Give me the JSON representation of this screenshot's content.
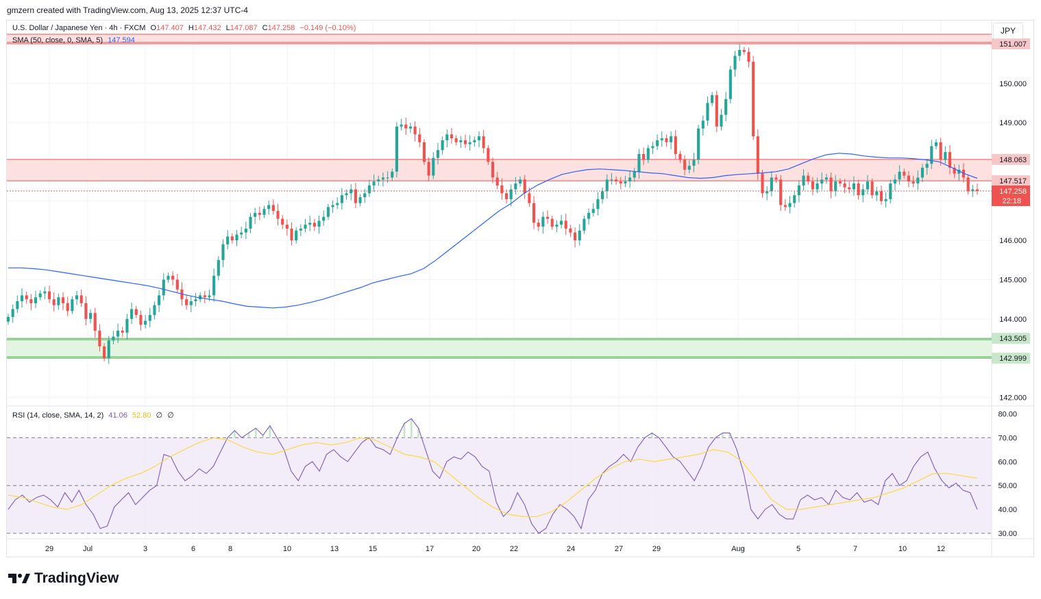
{
  "header": {
    "attribution": "gmzern created with TradingView.com, Aug 13, 2025 12:37 UTC-4"
  },
  "legend": {
    "symbol": "U.S. Dollar / Japanese Yen · 4h · FXCM",
    "open_label": "O",
    "open": "147.407",
    "high_label": "H",
    "high": "147.432",
    "low_label": "L",
    "low": "147.087",
    "close_label": "C",
    "close": "147.258",
    "change": "−0.149 (−0.10%)",
    "sma_label": "SMA (50, close, 0, SMA, 5)",
    "sma_value": "147.594",
    "rsi_label": "RSI (14, close, SMA, 14, 2)",
    "rsi_value": "41.06",
    "rsi_ma_value": "52.80",
    "rsi_extra1": "∅",
    "rsi_extra2": "∅"
  },
  "currency_button": "JPY",
  "colors": {
    "up": "#26a69a",
    "down": "#ef5350",
    "sma": "#2962ff",
    "rsi": "#7e57c2",
    "rsi_ma": "#fdd835",
    "resistance_fill": "#fde0e0",
    "resistance_line": "#ef5350",
    "support_fill": "#e3f5e1",
    "support_line": "#4caf50"
  },
  "branding": {
    "name": "TradingView"
  },
  "chart_data": {
    "type": "candlestick",
    "price_axis": {
      "ticks": [
        "150.000",
        "149.000",
        "146.000",
        "145.000",
        "144.000",
        "142.000"
      ],
      "range": [
        141.8,
        151.6
      ]
    },
    "rsi_axis": {
      "ticks": [
        "80.00",
        "70.00",
        "60.00",
        "50.00",
        "40.00",
        "30.00"
      ],
      "range": [
        28,
        83
      ]
    },
    "time_axis": [
      "29",
      "Jul",
      "3",
      "6",
      "8",
      "10",
      "13",
      "15",
      "17",
      "20",
      "22",
      "24",
      "27",
      "29",
      "Aug",
      "5",
      "7",
      "10",
      "12"
    ],
    "zones": [
      {
        "kind": "resistance",
        "top": 151.5,
        "bottom": 151.007,
        "label": "151.007"
      },
      {
        "kind": "resistance",
        "top": 148.063,
        "bottom": 147.517,
        "label_top": "148.063",
        "label_bottom": "147.517"
      },
      {
        "kind": "support",
        "top": 143.505,
        "bottom": 142.999,
        "label_top": "143.505",
        "label_bottom": "142.999"
      }
    ],
    "last_price": {
      "value": "147.258",
      "countdown": "22:18"
    },
    "rsi_bands": {
      "upper": 70,
      "middle": 50,
      "lower": 30
    },
    "close_series": [
      144.05,
      144.25,
      144.45,
      144.6,
      144.5,
      144.4,
      144.55,
      144.65,
      144.7,
      144.5,
      144.35,
      144.55,
      144.4,
      144.2,
      144.5,
      144.6,
      144.4,
      144.0,
      144.15,
      143.7,
      143.3,
      143.0,
      143.45,
      143.55,
      143.7,
      143.65,
      144.0,
      144.25,
      144.1,
      143.85,
      143.95,
      144.1,
      144.35,
      144.6,
      145.0,
      145.1,
      145.0,
      144.75,
      144.5,
      144.35,
      144.45,
      144.5,
      144.6,
      144.55,
      144.6,
      145.1,
      145.5,
      145.9,
      146.1,
      146.0,
      146.15,
      146.2,
      146.3,
      146.6,
      146.7,
      146.65,
      146.8,
      146.9,
      146.75,
      146.55,
      146.4,
      146.3,
      146.0,
      146.25,
      146.3,
      146.4,
      146.45,
      146.35,
      146.5,
      146.6,
      146.85,
      146.9,
      146.95,
      147.15,
      147.2,
      147.3,
      146.95,
      147.1,
      147.2,
      147.4,
      147.5,
      147.55,
      147.6,
      147.6,
      147.75,
      148.9,
      148.95,
      148.85,
      148.9,
      148.7,
      148.5,
      148.0,
      147.65,
      148.1,
      148.3,
      148.55,
      148.7,
      148.6,
      148.5,
      148.55,
      148.45,
      148.5,
      148.55,
      148.65,
      148.35,
      148.0,
      147.6,
      147.4,
      147.2,
      147.05,
      147.3,
      147.45,
      147.55,
      147.2,
      146.95,
      146.45,
      146.35,
      146.6,
      146.55,
      146.35,
      146.4,
      146.5,
      146.3,
      146.2,
      146.0,
      146.25,
      146.55,
      146.7,
      146.8,
      147.05,
      147.25,
      147.55,
      147.55,
      147.5,
      147.45,
      147.5,
      147.6,
      147.75,
      148.2,
      148.05,
      148.35,
      148.4,
      148.55,
      148.6,
      148.5,
      148.65,
      148.2,
      148.05,
      147.8,
      147.9,
      148.05,
      148.85,
      149.05,
      149.5,
      149.7,
      148.9,
      149.2,
      149.6,
      150.35,
      150.7,
      150.85,
      150.8,
      150.55,
      148.65,
      147.7,
      147.2,
      147.25,
      147.6,
      147.55,
      146.9,
      146.85,
      146.95,
      147.15,
      147.4,
      147.65,
      147.5,
      147.3,
      147.45,
      147.55,
      147.6,
      147.25,
      147.5,
      147.45,
      147.35,
      147.3,
      147.45,
      147.15,
      147.3,
      147.5,
      147.15,
      147.25,
      147.0,
      147.05,
      147.45,
      147.55,
      147.75,
      147.65,
      147.5,
      147.45,
      147.6,
      147.85,
      147.95,
      148.4,
      148.5,
      148.05,
      148.25,
      147.85,
      147.7,
      147.8,
      147.6,
      147.25,
      147.3,
      147.258
    ],
    "sma_series": [
      145.3,
      145.3,
      145.28,
      145.25,
      145.2,
      145.15,
      145.1,
      145.05,
      145.0,
      144.95,
      144.9,
      144.85,
      144.78,
      144.7,
      144.62,
      144.55,
      144.5,
      144.45,
      144.38,
      144.32,
      144.3,
      144.28,
      144.3,
      144.35,
      144.42,
      144.5,
      144.6,
      144.7,
      144.8,
      144.92,
      145.0,
      145.08,
      145.15,
      145.28,
      145.5,
      145.75,
      146.0,
      146.25,
      146.5,
      146.75,
      146.95,
      147.2,
      147.4,
      147.55,
      147.68,
      147.75,
      147.8,
      147.82,
      147.8,
      147.78,
      147.75,
      147.72,
      147.7,
      147.65,
      147.6,
      147.58,
      147.6,
      147.65,
      147.68,
      147.7,
      147.72,
      147.75,
      147.82,
      147.95,
      148.08,
      148.18,
      148.22,
      148.2,
      148.15,
      148.12,
      148.1,
      148.1,
      148.08,
      148.05,
      148.0,
      147.85,
      147.7,
      147.58
    ],
    "rsi_series": [
      40,
      44,
      46,
      43,
      45,
      46,
      44,
      41,
      47,
      43,
      48,
      42,
      38,
      32,
      33,
      41,
      44,
      47,
      42,
      45,
      48,
      50,
      63,
      62,
      56,
      52,
      54,
      57,
      55,
      58,
      64,
      70,
      73,
      70,
      72,
      74,
      71,
      75,
      70,
      65,
      56,
      52,
      58,
      60,
      56,
      63,
      65,
      62,
      60,
      64,
      68,
      70,
      66,
      65,
      63,
      70,
      76,
      78,
      74,
      65,
      56,
      53,
      60,
      62,
      61,
      64,
      62,
      58,
      56,
      43,
      37,
      40,
      47,
      42,
      34,
      30,
      32,
      38,
      42,
      40,
      37,
      32,
      44,
      48,
      55,
      58,
      60,
      63,
      60,
      66,
      70,
      72,
      70,
      66,
      62,
      60,
      56,
      52,
      58,
      66,
      70,
      72,
      72,
      65,
      55,
      40,
      36,
      40,
      42,
      38,
      36,
      36,
      44,
      46,
      44,
      45,
      42,
      48,
      45,
      44,
      47,
      43,
      44,
      42,
      52,
      55,
      50,
      52,
      58,
      62,
      64,
      57,
      52,
      49,
      51,
      48,
      47,
      40
    ],
    "rsi_ma_series": [
      46,
      45,
      43,
      41,
      40,
      42,
      46,
      50,
      53,
      55,
      58,
      62,
      65,
      68,
      70,
      69,
      66,
      64,
      63,
      65,
      67,
      68,
      67,
      68,
      70,
      69,
      66,
      63,
      62,
      60,
      55,
      50,
      45,
      41,
      38,
      37,
      37,
      39,
      43,
      48,
      53,
      57,
      60,
      61,
      60,
      61,
      62,
      63,
      65,
      64,
      60,
      52,
      44,
      40,
      40,
      41,
      42,
      43,
      44,
      45,
      47,
      49,
      52,
      55,
      55,
      54,
      53
    ]
  }
}
